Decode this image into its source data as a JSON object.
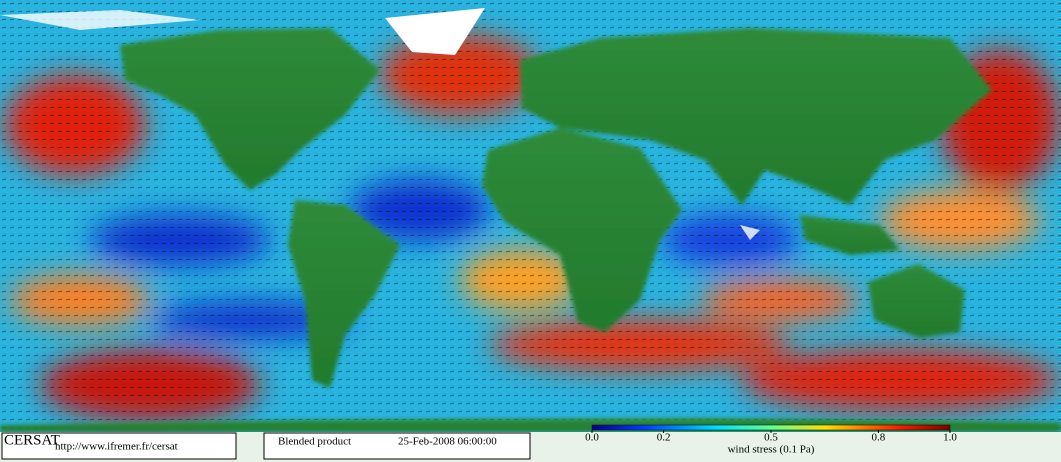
{
  "footer": {
    "logo": "CERSAT",
    "url": "http://www.ifremer.fr/cersat",
    "product": "Blended product",
    "date": "25-Feb-2008 06:00:00"
  },
  "colorbar": {
    "range": [
      0,
      1
    ],
    "ticks": [
      {
        "value": 0,
        "label": "0.0"
      },
      0.2,
      0.5,
      0.8,
      {
        "value": 1,
        "label": "1.0"
      }
    ],
    "label": "wind stress (0.1 Pa)"
  }
}
